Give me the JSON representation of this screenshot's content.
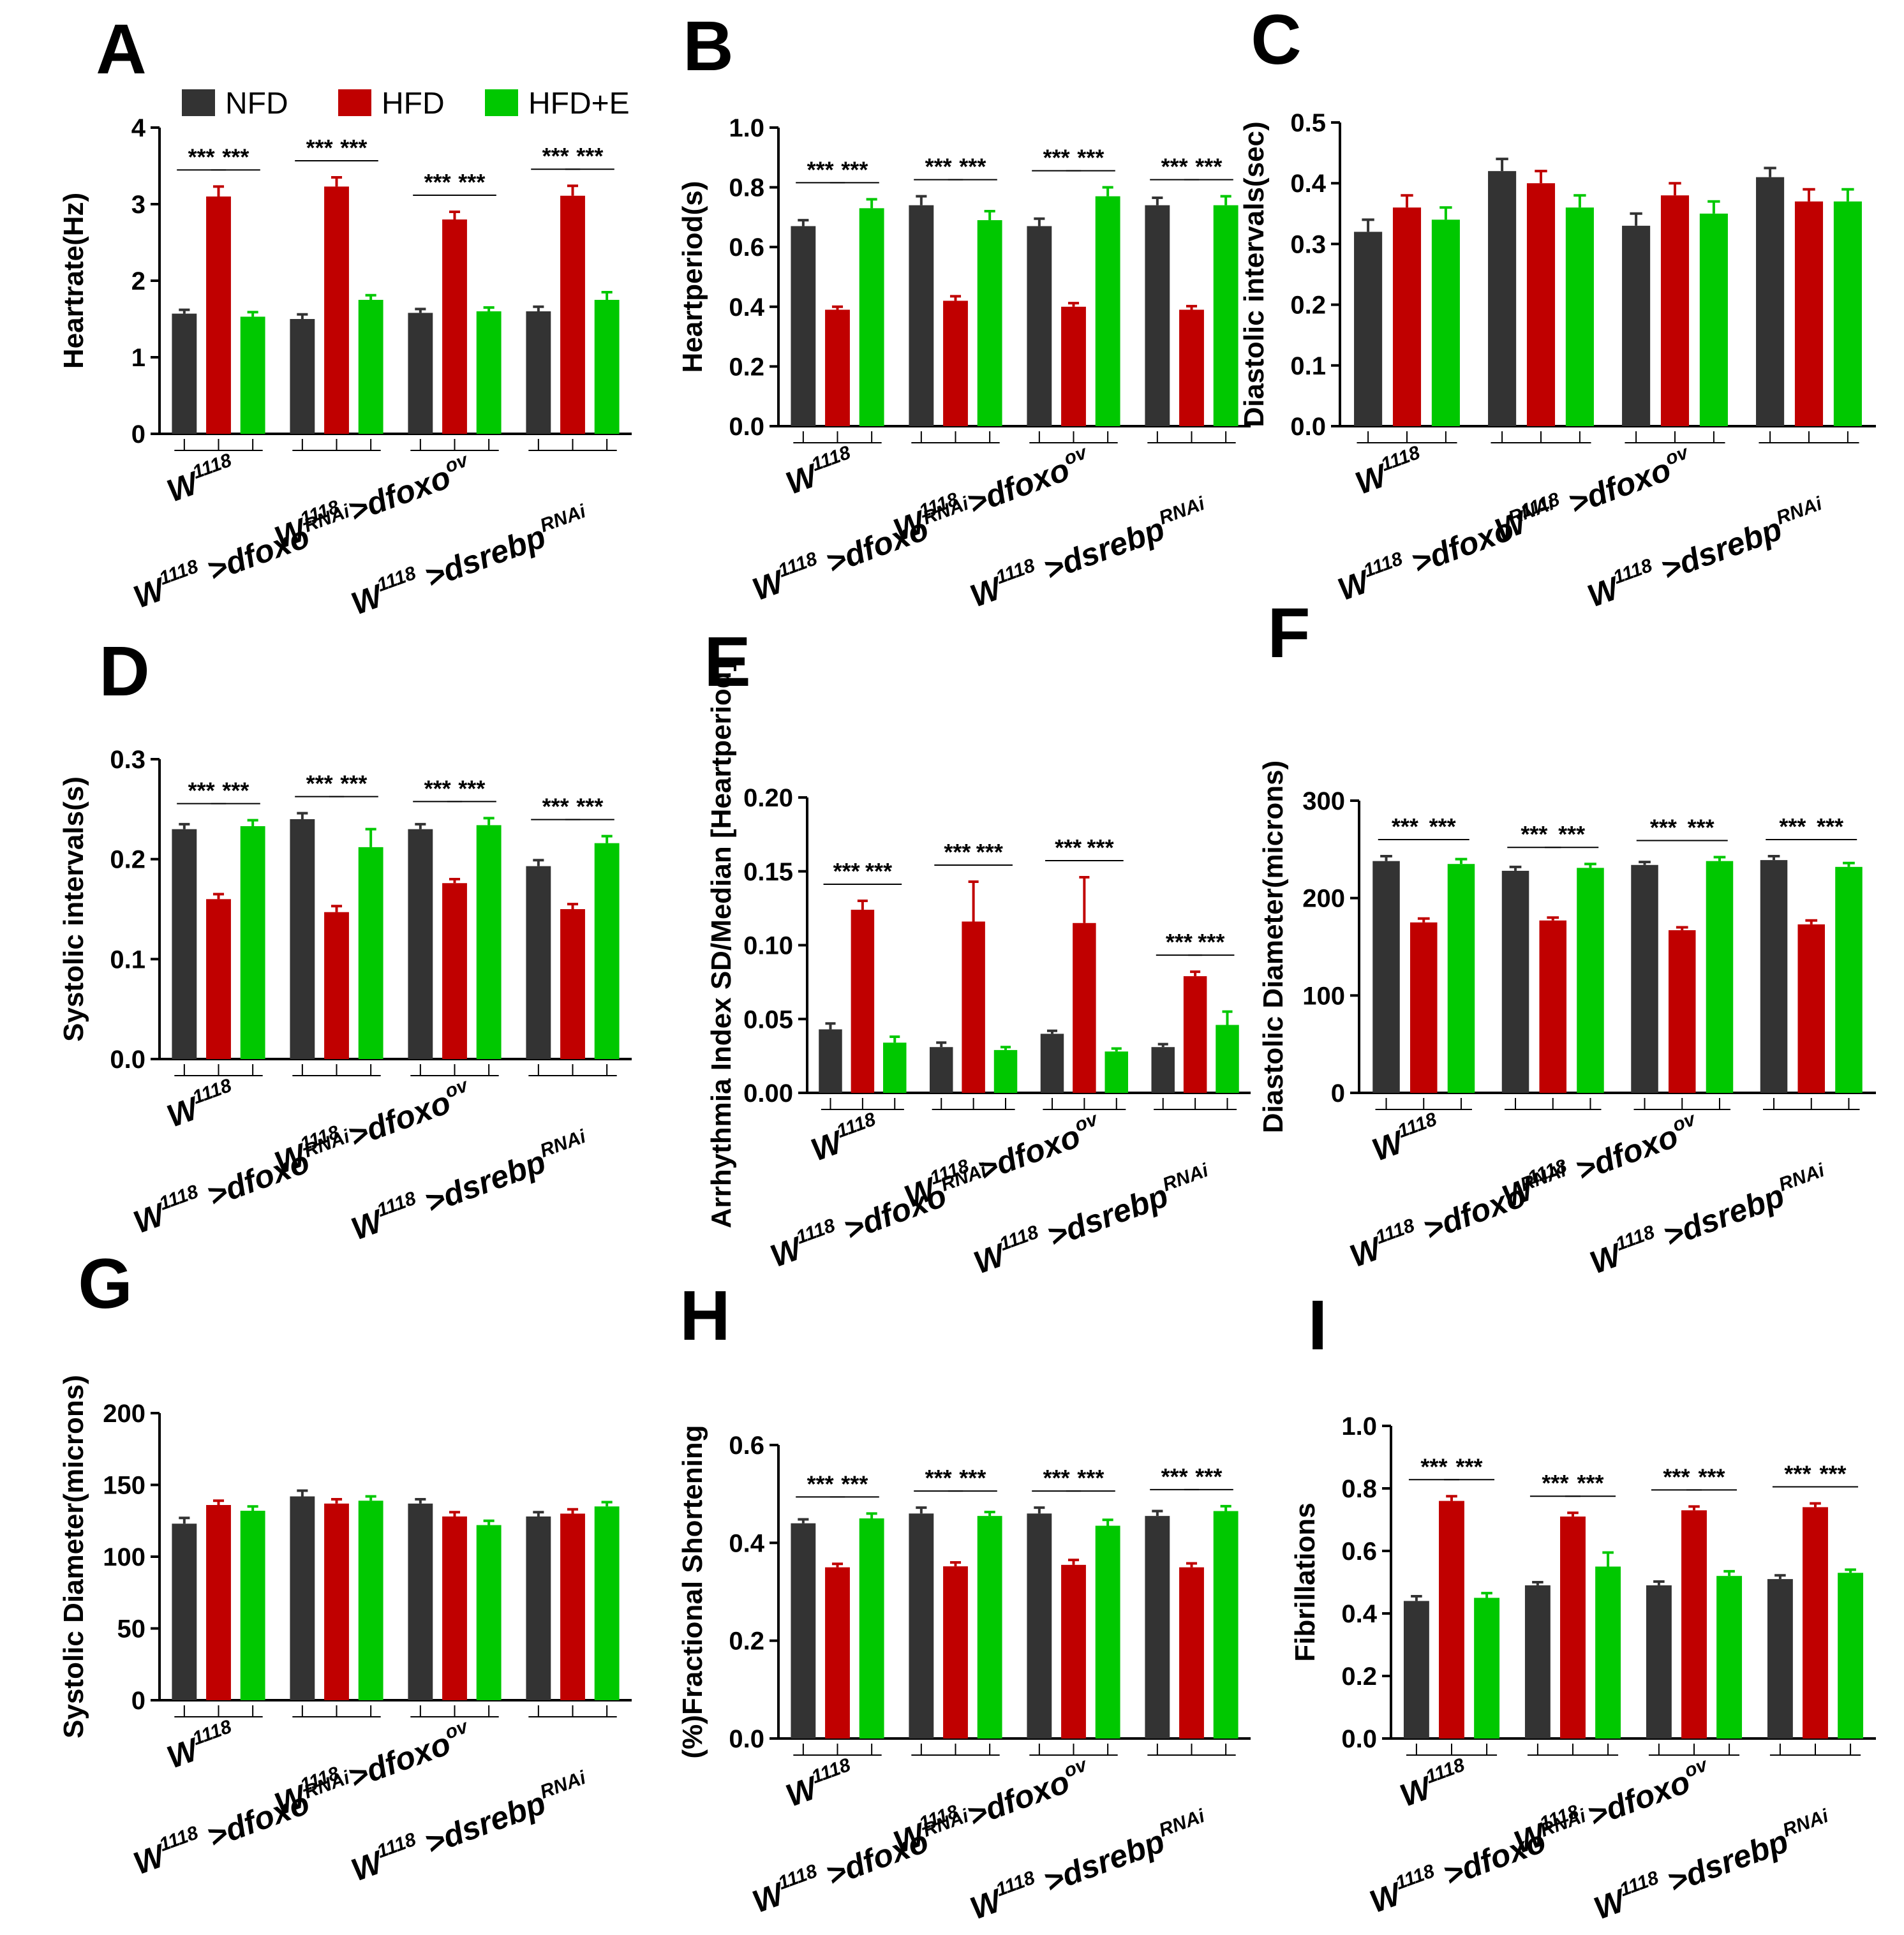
{
  "legend": [
    {
      "label": "NFD",
      "color": "#333333"
    },
    {
      "label": "HFD",
      "color": "#c00000"
    },
    {
      "label": "HFD+E",
      "color": "#00c800"
    }
  ],
  "groups": [
    {
      "base": "W",
      "base_sup": "1118",
      "suffix": "",
      "suffix_sup": ""
    },
    {
      "base": "W",
      "base_sup": "1118",
      "suffix": " >dfoxo",
      "suffix_sup": "RNAi"
    },
    {
      "base": "W",
      "base_sup": "1118",
      "suffix": " >dfoxo",
      "suffix_sup": "ov"
    },
    {
      "base": "W",
      "base_sup": "1118",
      "suffix": " >dsrebp",
      "suffix_sup": "RNAi"
    }
  ],
  "significance_marker": "***",
  "chart_data": [
    {
      "panel": "A",
      "type": "bar",
      "ylabel": "Heartrate(Hz)",
      "ylim": [
        0,
        4
      ],
      "yticks": [
        "0",
        "1",
        "2",
        "3",
        "4"
      ],
      "tickvals": [
        0,
        1,
        2,
        3,
        4
      ],
      "series": [
        {
          "name": "NFD",
          "values": [
            1.57,
            1.5,
            1.58,
            1.6
          ],
          "errors": [
            0.05,
            0.06,
            0.05,
            0.06
          ]
        },
        {
          "name": "HFD",
          "values": [
            3.1,
            3.23,
            2.8,
            3.11
          ],
          "errors": [
            0.13,
            0.12,
            0.1,
            0.13
          ]
        },
        {
          "name": "HFD+E",
          "values": [
            1.53,
            1.75,
            1.6,
            1.75
          ],
          "errors": [
            0.06,
            0.06,
            0.05,
            0.1
          ]
        }
      ],
      "significance": true
    },
    {
      "panel": "B",
      "type": "bar",
      "ylabel": "Heartperiod(s)",
      "ylim": [
        0,
        1
      ],
      "yticks": [
        "0.0",
        "0.2",
        "0.4",
        "0.6",
        "0.8",
        "1.0"
      ],
      "tickvals": [
        0,
        0.2,
        0.4,
        0.6,
        0.8,
        1.0
      ],
      "series": [
        {
          "name": "NFD",
          "values": [
            0.67,
            0.74,
            0.67,
            0.74
          ],
          "errors": [
            0.02,
            0.03,
            0.025,
            0.025
          ]
        },
        {
          "name": "HFD",
          "values": [
            0.39,
            0.42,
            0.4,
            0.39
          ],
          "errors": [
            0.01,
            0.015,
            0.012,
            0.012
          ]
        },
        {
          "name": "HFD+E",
          "values": [
            0.73,
            0.69,
            0.77,
            0.74
          ],
          "errors": [
            0.03,
            0.03,
            0.03,
            0.03
          ]
        }
      ],
      "significance": true
    },
    {
      "panel": "C",
      "type": "bar",
      "ylabel": "Diastolic intervals(sec)",
      "ylim": [
        0,
        0.5
      ],
      "yticks": [
        "0.0",
        "0.1",
        "0.2",
        "0.3",
        "0.4",
        "0.5"
      ],
      "tickvals": [
        0,
        0.1,
        0.2,
        0.3,
        0.4,
        0.5
      ],
      "series": [
        {
          "name": "NFD",
          "values": [
            0.32,
            0.42,
            0.33,
            0.41
          ],
          "errors": [
            0.02,
            0.02,
            0.02,
            0.015
          ]
        },
        {
          "name": "HFD",
          "values": [
            0.36,
            0.4,
            0.38,
            0.37
          ],
          "errors": [
            0.02,
            0.02,
            0.02,
            0.02
          ]
        },
        {
          "name": "HFD+E",
          "values": [
            0.34,
            0.36,
            0.35,
            0.37
          ],
          "errors": [
            0.02,
            0.02,
            0.02,
            0.02
          ]
        }
      ],
      "significance": false
    },
    {
      "panel": "D",
      "type": "bar",
      "ylabel": "Systolic intervals(s)",
      "ylim": [
        0,
        0.3
      ],
      "yticks": [
        "0.0",
        "0.1",
        "0.2",
        "0.3"
      ],
      "tickvals": [
        0,
        0.1,
        0.2,
        0.3
      ],
      "series": [
        {
          "name": "NFD",
          "values": [
            0.23,
            0.24,
            0.23,
            0.193
          ],
          "errors": [
            0.005,
            0.006,
            0.005,
            0.006
          ]
        },
        {
          "name": "HFD",
          "values": [
            0.16,
            0.147,
            0.176,
            0.15
          ],
          "errors": [
            0.005,
            0.006,
            0.004,
            0.005
          ]
        },
        {
          "name": "HFD+E",
          "values": [
            0.233,
            0.212,
            0.234,
            0.216
          ],
          "errors": [
            0.006,
            0.018,
            0.007,
            0.007
          ]
        }
      ],
      "significance": true
    },
    {
      "panel": "E",
      "type": "bar",
      "ylabel": "Arrhythmia Index SD/Median [Heartperiod]",
      "ylim": [
        0,
        0.2
      ],
      "yticks": [
        "0.00",
        "0.05",
        "0.10",
        "0.15",
        "0.20"
      ],
      "tickvals": [
        0,
        0.05,
        0.1,
        0.15,
        0.2
      ],
      "series": [
        {
          "name": "NFD",
          "values": [
            0.043,
            0.031,
            0.04,
            0.031
          ],
          "errors": [
            0.004,
            0.003,
            0.002,
            0.002
          ]
        },
        {
          "name": "HFD",
          "values": [
            0.124,
            0.116,
            0.115,
            0.079
          ],
          "errors": [
            0.006,
            0.027,
            0.031,
            0.003
          ]
        },
        {
          "name": "HFD+E",
          "values": [
            0.034,
            0.029,
            0.028,
            0.046
          ],
          "errors": [
            0.004,
            0.002,
            0.002,
            0.009
          ]
        }
      ],
      "significance": true
    },
    {
      "panel": "F",
      "type": "bar",
      "ylabel": "Diastolic Diameter(microns)",
      "ylim": [
        0,
        300
      ],
      "yticks": [
        "0",
        "100",
        "200",
        "300"
      ],
      "tickvals": [
        0,
        100,
        200,
        300
      ],
      "series": [
        {
          "name": "NFD",
          "values": [
            238,
            228,
            234,
            239
          ],
          "errors": [
            5,
            4,
            3,
            4
          ]
        },
        {
          "name": "HFD",
          "values": [
            175,
            177,
            167,
            173
          ],
          "errors": [
            4,
            3,
            3,
            4
          ]
        },
        {
          "name": "HFD+E",
          "values": [
            235,
            231,
            238,
            232
          ],
          "errors": [
            5,
            4,
            4,
            4
          ]
        }
      ],
      "significance": true
    },
    {
      "panel": "G",
      "type": "bar",
      "ylabel": "Systolic Diameter(microns)",
      "ylim": [
        0,
        200
      ],
      "yticks": [
        "0",
        "50",
        "100",
        "150",
        "200"
      ],
      "tickvals": [
        0,
        50,
        100,
        150,
        200
      ],
      "series": [
        {
          "name": "NFD",
          "values": [
            123,
            142,
            137,
            128
          ],
          "errors": [
            4,
            4,
            3,
            3
          ]
        },
        {
          "name": "HFD",
          "values": [
            136,
            137,
            128,
            130
          ],
          "errors": [
            3,
            3,
            3,
            3
          ]
        },
        {
          "name": "HFD+E",
          "values": [
            132,
            139,
            122,
            135
          ],
          "errors": [
            3,
            3,
            3,
            3
          ]
        }
      ],
      "significance": false
    },
    {
      "panel": "H",
      "type": "bar",
      "ylabel": "(%)Fractional Shortening",
      "ylim": [
        0,
        0.6
      ],
      "yticks": [
        "0.0",
        "0.2",
        "0.4",
        "0.6"
      ],
      "tickvals": [
        0,
        0.2,
        0.4,
        0.6
      ],
      "series": [
        {
          "name": "NFD",
          "values": [
            0.44,
            0.46,
            0.46,
            0.455
          ],
          "errors": [
            0.008,
            0.012,
            0.012,
            0.01
          ]
        },
        {
          "name": "HFD",
          "values": [
            0.35,
            0.352,
            0.355,
            0.35
          ],
          "errors": [
            0.007,
            0.008,
            0.01,
            0.008
          ]
        },
        {
          "name": "HFD+E",
          "values": [
            0.45,
            0.455,
            0.435,
            0.465
          ],
          "errors": [
            0.01,
            0.008,
            0.012,
            0.01
          ]
        }
      ],
      "significance": true
    },
    {
      "panel": "I",
      "type": "bar",
      "ylabel": "Fibrillations",
      "ylim": [
        0,
        1
      ],
      "yticks": [
        "0.0",
        "0.2",
        "0.4",
        "0.6",
        "0.8",
        "1.0"
      ],
      "tickvals": [
        0,
        0.2,
        0.4,
        0.6,
        0.8,
        1.0
      ],
      "series": [
        {
          "name": "NFD",
          "values": [
            0.44,
            0.49,
            0.49,
            0.51
          ],
          "errors": [
            0.015,
            0.01,
            0.012,
            0.012
          ]
        },
        {
          "name": "HFD",
          "values": [
            0.76,
            0.71,
            0.73,
            0.74
          ],
          "errors": [
            0.015,
            0.012,
            0.012,
            0.012
          ]
        },
        {
          "name": "HFD+E",
          "values": [
            0.45,
            0.55,
            0.52,
            0.53
          ],
          "errors": [
            0.015,
            0.045,
            0.015,
            0.01
          ]
        }
      ],
      "significance": true
    }
  ]
}
